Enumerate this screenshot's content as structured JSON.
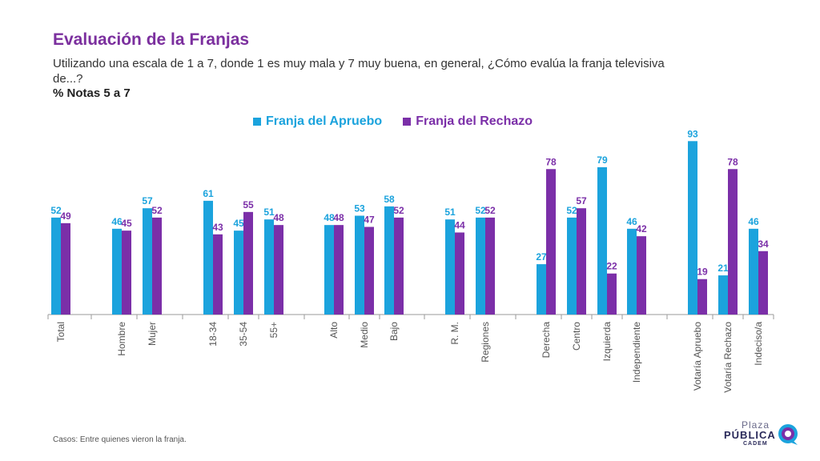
{
  "title": "Evaluación de la Franjas",
  "subtitle": "Utilizando una escala de 1 a 7, donde 1 es muy mala y 7 muy buena, en general, ¿Cómo evalúa la franja televisiva de...?",
  "note": "% Notas 5 a 7",
  "footer": {
    "label": "Casos",
    "text": ": Entre quienes vieron la franja."
  },
  "logo": {
    "line1": "Plaza",
    "line2": "PÚBLICA",
    "line3": "CADEM"
  },
  "colors": {
    "apruebo": "#1BA3DD",
    "rechazo": "#7B2FA8",
    "title": "#7B2F9E"
  },
  "chart_data": {
    "type": "bar",
    "categories": [
      "Total",
      "Hombre",
      "Mujer",
      "18-34",
      "35-54",
      "55+",
      "Alto",
      "Medio",
      "Bajo",
      "R. M.",
      "Regiones",
      "Derecha",
      "Centro",
      "Izquierda",
      "Independiente",
      "Votaría Apruebo",
      "Votaría Rechazo",
      "Indeciso/a"
    ],
    "groups": [
      [
        0
      ],
      [
        1,
        2
      ],
      [
        3,
        4,
        5
      ],
      [
        6,
        7,
        8
      ],
      [
        9,
        10
      ],
      [
        11,
        12,
        13,
        14
      ],
      [
        15,
        16,
        17
      ]
    ],
    "series": [
      {
        "name": "Franja del Apruebo",
        "color": "#1BA3DD",
        "values": [
          52,
          46,
          57,
          61,
          45,
          51,
          48,
          53,
          58,
          51,
          52,
          27,
          52,
          79,
          46,
          93,
          21,
          46
        ]
      },
      {
        "name": "Franja del Rechazo",
        "color": "#7B2FA8",
        "values": [
          49,
          45,
          52,
          43,
          55,
          48,
          48,
          47,
          52,
          44,
          52,
          78,
          57,
          22,
          42,
          19,
          78,
          34
        ]
      }
    ],
    "ylim": [
      0,
      100
    ],
    "legend": "top",
    "grid": false
  }
}
